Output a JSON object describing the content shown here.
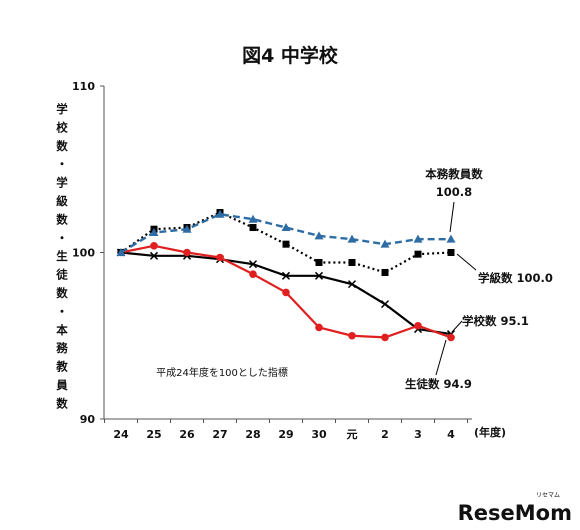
{
  "chart_data": {
    "type": "line",
    "title": "図4 中学校",
    "ylabel": "学校数・学級数・生徒数・本務教員数",
    "xlabel": "(年度)",
    "note": "平成24年度を100とした指標",
    "categories": [
      "24",
      "25",
      "26",
      "27",
      "28",
      "29",
      "30",
      "元",
      "2",
      "3",
      "4"
    ],
    "ylim": [
      90,
      110
    ],
    "y_ticks": [
      "90",
      "100",
      "110"
    ],
    "grid": false,
    "series": [
      {
        "name": "本務教員数",
        "values": [
          100.0,
          101.2,
          101.4,
          102.3,
          102.0,
          101.5,
          101.0,
          100.8,
          100.5,
          100.8,
          100.8
        ],
        "color": "#2e6ca4",
        "style": "dashed",
        "marker": "triangle",
        "label_line1": "本務教員数",
        "label_line2": "100.8"
      },
      {
        "name": "学級数",
        "values": [
          100.0,
          101.4,
          101.5,
          102.4,
          101.5,
          100.5,
          99.4,
          99.4,
          98.8,
          99.9,
          100.0
        ],
        "color": "#000000",
        "style": "dotted",
        "marker": "square",
        "label": "学級数 100.0"
      },
      {
        "name": "学校数",
        "values": [
          100.0,
          99.8,
          99.8,
          99.6,
          99.3,
          98.6,
          98.6,
          98.1,
          96.9,
          95.4,
          95.1
        ],
        "color": "#000000",
        "style": "solid",
        "marker": "x",
        "label": "学校数 95.1"
      },
      {
        "name": "生徒数",
        "values": [
          100.0,
          100.4,
          100.0,
          99.7,
          98.7,
          97.6,
          95.5,
          95.0,
          94.9,
          95.6,
          94.9
        ],
        "color": "#e02020",
        "style": "solid",
        "marker": "circle",
        "label": "生徒数 94.9"
      }
    ]
  },
  "watermark": {
    "text": "ReseMom",
    "sub": "リセマム"
  }
}
